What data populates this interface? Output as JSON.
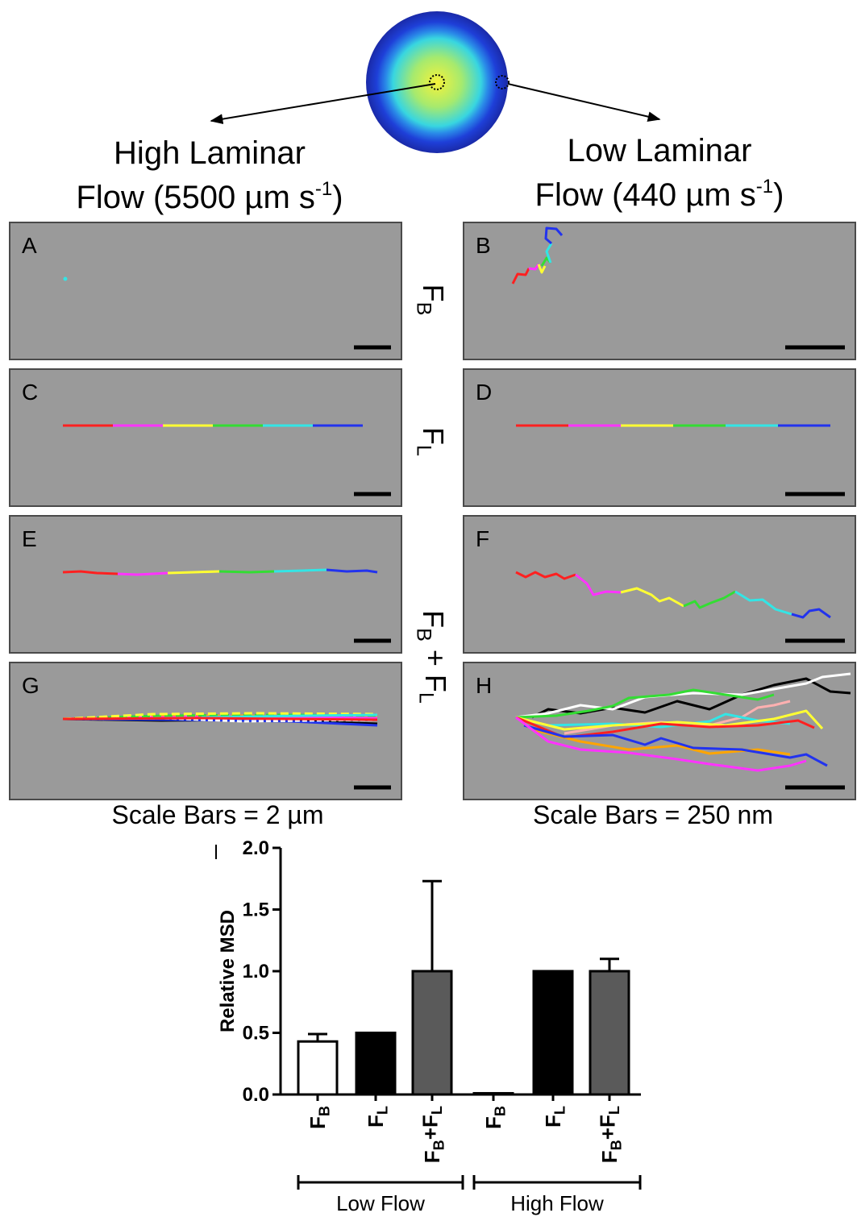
{
  "header": {
    "left": {
      "line1": "High Laminar",
      "line2": "Flow (5500 µm s",
      "sup": "-1",
      "close": ")"
    },
    "right": {
      "line1": "Low Laminar",
      "line2": "Flow (440 µm s",
      "sup": "-1",
      "close": ")"
    }
  },
  "panels": {
    "letters": [
      "A",
      "B",
      "C",
      "D",
      "E",
      "F",
      "G",
      "H"
    ],
    "side_labels": [
      "FB",
      "FL",
      "FB + FL"
    ],
    "scale_left": "Scale Bars = 2 µm",
    "scale_right": "Scale Bars = 250 nm"
  },
  "chart_data": {
    "type": "bar",
    "ylabel": "Relative MSD",
    "categories": [
      "FB",
      "FL",
      "FB+FL",
      "FB",
      "FL",
      "FB+FL"
    ],
    "values": [
      0.43,
      0.5,
      1.0,
      0.01,
      1.0,
      1.0
    ],
    "errors": [
      0.06,
      0,
      0.73,
      0,
      0,
      0.1
    ],
    "colors": [
      "#ffffff",
      "#000000",
      "#5a5a5a",
      "#ffffff",
      "#000000",
      "#5a5a5a"
    ],
    "groups": [
      {
        "name": "Low Flow",
        "start": 0,
        "end": 2
      },
      {
        "name": "High Flow",
        "start": 3,
        "end": 5
      }
    ],
    "ylim": [
      0,
      2
    ],
    "yticks": [
      {
        "value": 0,
        "label": "0.0"
      },
      {
        "value": 0.5,
        "label": "0.5"
      },
      {
        "value": 1,
        "label": "1.0"
      },
      {
        "value": 1.5,
        "label": "1.5"
      },
      {
        "value": 2,
        "label": "2.0"
      }
    ]
  }
}
